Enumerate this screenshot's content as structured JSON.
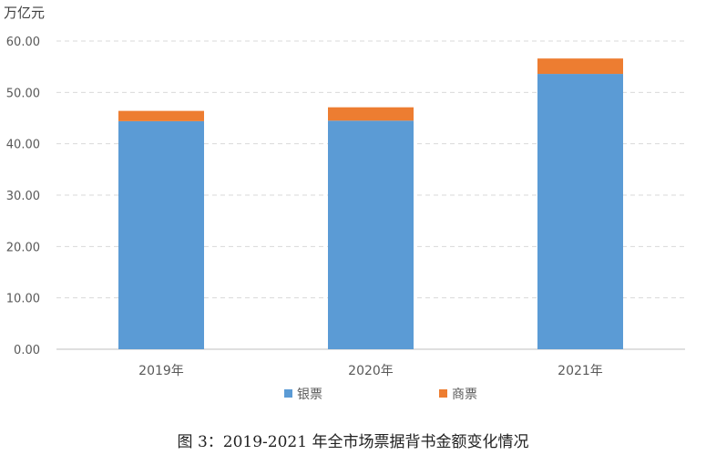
{
  "chart_data": {
    "type": "bar",
    "stacked": true,
    "unit_label": "万亿元",
    "categories": [
      "2019年",
      "2020年",
      "2021年"
    ],
    "series": [
      {
        "name": "银票",
        "values": [
          44.4,
          44.5,
          53.6
        ],
        "color": "#5b9bd5"
      },
      {
        "name": "商票",
        "values": [
          2.0,
          2.6,
          3.0
        ],
        "color": "#ed7d31"
      }
    ],
    "ylim": [
      0,
      60
    ],
    "yticks": [
      "0.00",
      "10.00",
      "20.00",
      "30.00",
      "40.00",
      "50.00",
      "60.00"
    ],
    "ytick_values": [
      0,
      10,
      20,
      30,
      40,
      50,
      60
    ],
    "grid": true,
    "legend_position": "bottom"
  },
  "caption": "图 3：2019-2021 年全市场票据背书金额变化情况"
}
